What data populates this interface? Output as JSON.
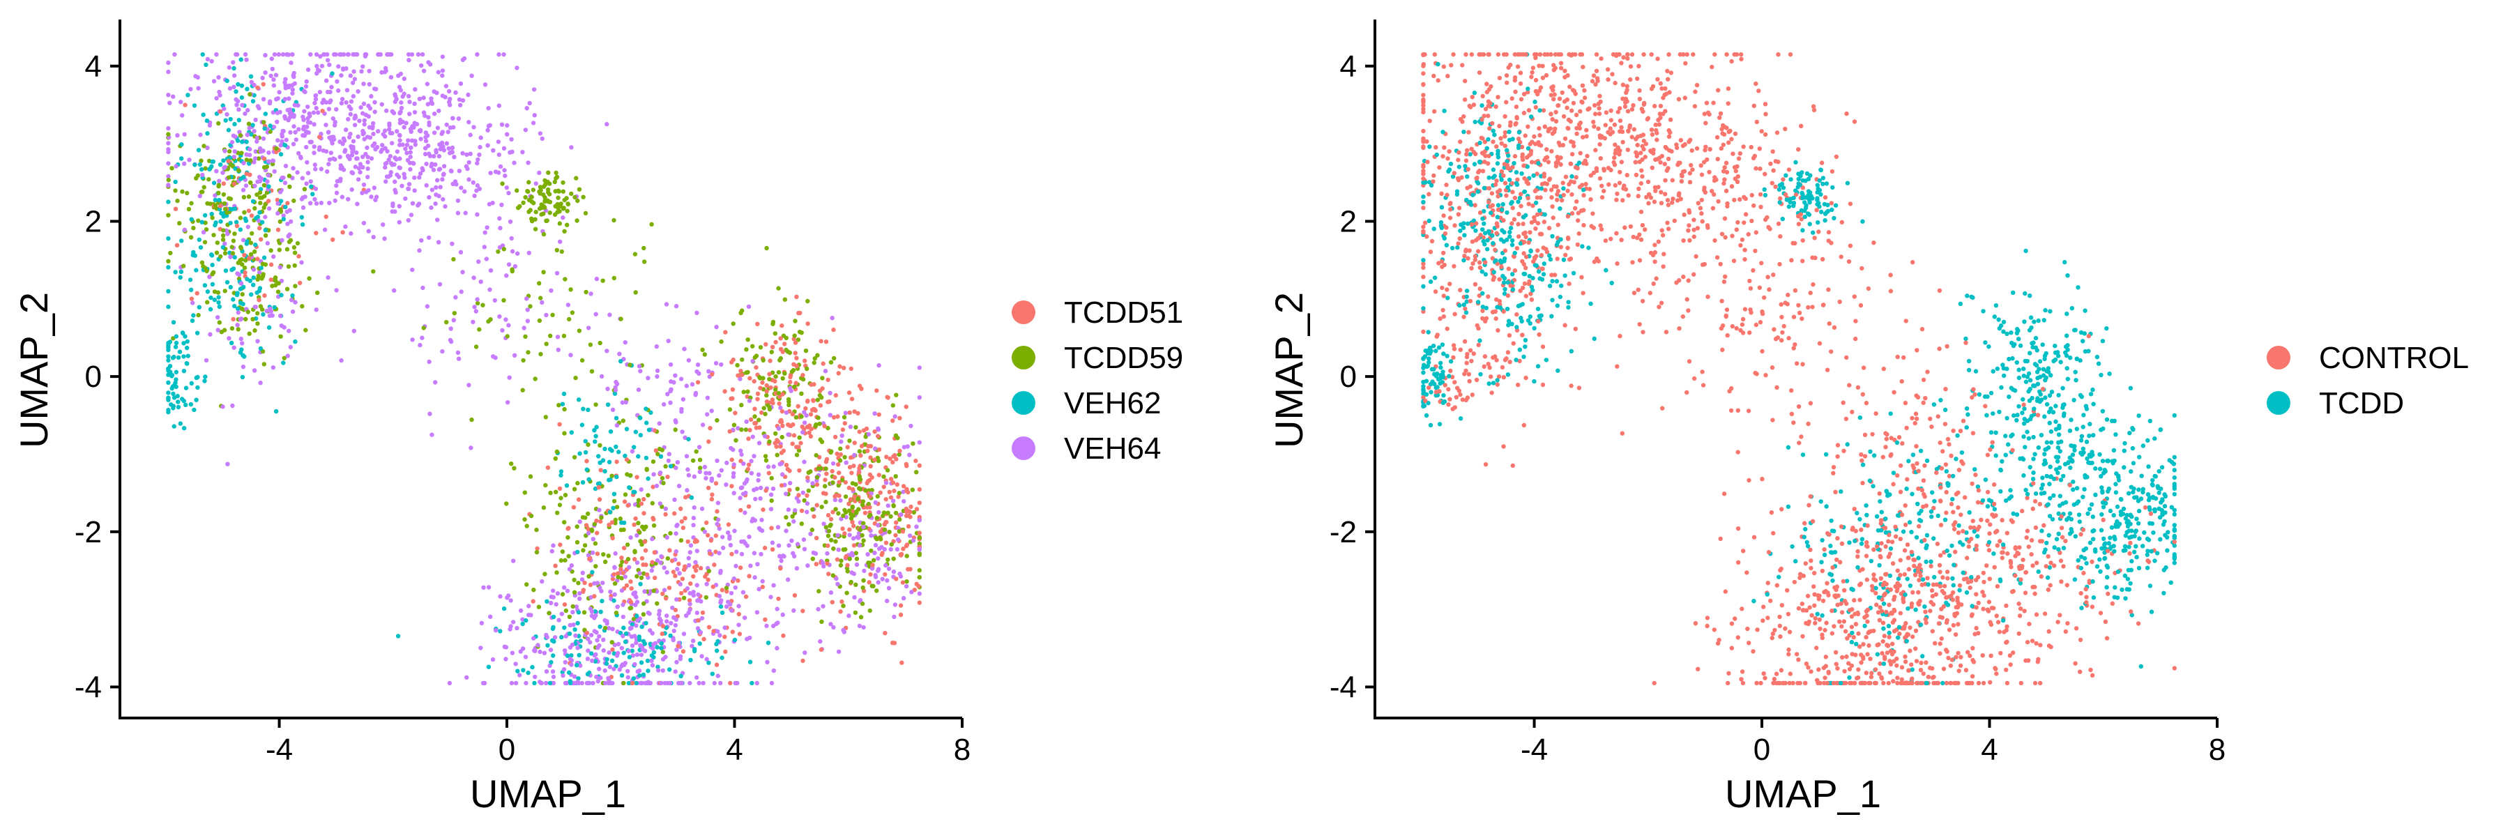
{
  "chart_data": [
    {
      "type": "scatter",
      "panel": "left",
      "title": "",
      "xlabel": "UMAP_1",
      "ylabel": "UMAP_2",
      "xlim": [
        -6.8,
        8.0
      ],
      "ylim": [
        -4.4,
        4.6
      ],
      "xticks": [
        -4,
        0,
        4,
        8
      ],
      "yticks": [
        -4,
        -2,
        0,
        2,
        4
      ],
      "xtick_labels": [
        "-4",
        "0",
        "4",
        "8"
      ],
      "ytick_labels": [
        "-4",
        "-2",
        "0",
        "2",
        "4"
      ],
      "grid": false,
      "legend_position": "right",
      "series": [
        {
          "name": "TCDD51",
          "color": "#F8766D",
          "clusters": [
            [
              4.8,
              -0.2,
              0.6,
              0.5,
              120
            ],
            [
              6.5,
              -1.8,
              0.5,
              0.6,
              180
            ],
            [
              3.5,
              -2.5,
              0.9,
              0.6,
              120
            ],
            [
              -4.3,
              2.2,
              0.7,
              0.7,
              60
            ],
            [
              1.8,
              -2.0,
              0.8,
              0.7,
              80
            ],
            [
              5.5,
              -0.9,
              0.6,
              0.5,
              90
            ]
          ]
        },
        {
          "name": "TCDD59",
          "color": "#7CAE00",
          "clusters": [
            [
              0.8,
              2.3,
              0.3,
              0.2,
              90
            ],
            [
              -4.8,
              2.3,
              0.5,
              0.5,
              150
            ],
            [
              4.8,
              -0.1,
              0.5,
              0.5,
              120
            ],
            [
              6.2,
              -1.8,
              0.6,
              0.6,
              200
            ],
            [
              1.8,
              -1.9,
              0.9,
              0.8,
              180
            ],
            [
              -4.3,
              1.2,
              0.5,
              0.6,
              90
            ],
            [
              0.8,
              0.8,
              1.2,
              0.6,
              60
            ]
          ]
        },
        {
          "name": "VEH62",
          "color": "#00BFC4",
          "clusters": [
            [
              -5.8,
              0.0,
              0.2,
              0.3,
              70
            ],
            [
              -4.9,
              1.7,
              0.6,
              0.8,
              160
            ],
            [
              1.8,
              -3.5,
              1.0,
              0.3,
              130
            ],
            [
              1.8,
              -1.0,
              0.5,
              0.5,
              70
            ],
            [
              -4.6,
              3.2,
              0.5,
              0.5,
              60
            ]
          ]
        },
        {
          "name": "VEH64",
          "color": "#C77CFF",
          "clusters": [
            [
              -3.2,
              3.3,
              1.3,
              0.6,
              560
            ],
            [
              -1.2,
              2.8,
              0.9,
              0.4,
              200
            ],
            [
              2.0,
              -3.3,
              1.2,
              0.6,
              420
            ],
            [
              4.6,
              -1.6,
              1.3,
              0.8,
              260
            ],
            [
              6.5,
              -2.3,
              0.4,
              0.6,
              90
            ],
            [
              -4.4,
              1.4,
              0.6,
              0.8,
              100
            ],
            [
              -0.3,
              1.2,
              1.2,
              0.9,
              110
            ],
            [
              2.8,
              0.0,
              0.8,
              0.5,
              60
            ]
          ]
        }
      ]
    },
    {
      "type": "scatter",
      "panel": "right",
      "title": "",
      "xlabel": "UMAP_1",
      "ylabel": "UMAP_2",
      "xlim": [
        -6.8,
        8.0
      ],
      "ylim": [
        -4.4,
        4.6
      ],
      "xticks": [
        -4,
        0,
        4,
        8
      ],
      "yticks": [
        -4,
        -2,
        0,
        2,
        4
      ],
      "xtick_labels": [
        "-4",
        "0",
        "4",
        "8"
      ],
      "ytick_labels": [
        "-4",
        "-2",
        "0",
        "2",
        "4"
      ],
      "grid": false,
      "legend_position": "right",
      "series": [
        {
          "name": "CONTROL",
          "color": "#F8766D",
          "clusters": [
            [
              -3.4,
              3.1,
              1.5,
              0.8,
              700
            ],
            [
              -4.6,
              1.4,
              0.7,
              0.9,
              220
            ],
            [
              -1.0,
              2.4,
              1.1,
              0.6,
              200
            ],
            [
              2.0,
              -3.2,
              1.3,
              0.7,
              560
            ],
            [
              4.2,
              -2.4,
              1.2,
              0.7,
              240
            ],
            [
              0.0,
              0.8,
              1.2,
              0.8,
              160
            ],
            [
              -5.3,
              0.2,
              0.3,
              0.4,
              50
            ],
            [
              2.6,
              -0.7,
              0.9,
              0.6,
              100
            ]
          ]
        },
        {
          "name": "TCDD",
          "color": "#00BFC4",
          "clusters": [
            [
              4.8,
              -0.1,
              0.6,
              0.6,
              240
            ],
            [
              6.4,
              -1.8,
              0.6,
              0.6,
              280
            ],
            [
              0.8,
              2.3,
              0.3,
              0.2,
              90
            ],
            [
              -4.8,
              2.2,
              0.6,
              0.7,
              230
            ],
            [
              -5.8,
              0.0,
              0.2,
              0.3,
              70
            ],
            [
              2.2,
              -2.3,
              1.0,
              0.8,
              220
            ],
            [
              5.2,
              -1.2,
              0.6,
              0.6,
              120
            ],
            [
              -4.0,
              1.0,
              0.6,
              0.5,
              80
            ]
          ]
        }
      ]
    }
  ]
}
